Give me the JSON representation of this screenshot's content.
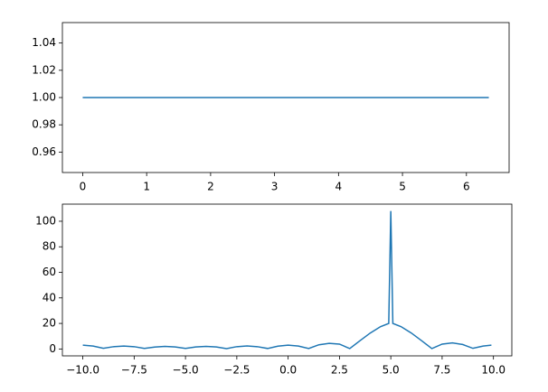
{
  "chart_data": [
    {
      "type": "line",
      "xlim": [
        -0.3175,
        6.6675
      ],
      "ylim": [
        0.945,
        1.055
      ],
      "xticks": [
        0,
        1,
        2,
        3,
        4,
        5,
        6
      ],
      "yticks": [
        {
          "value": 0.96,
          "label": "0.96"
        },
        {
          "value": 0.98,
          "label": "0.98"
        },
        {
          "value": 1.0,
          "label": "1.00"
        },
        {
          "value": 1.02,
          "label": "1.02"
        },
        {
          "value": 1.04,
          "label": "1.04"
        }
      ],
      "x": [
        0,
        6.35
      ],
      "series": [
        {
          "color": "#1f77b4",
          "values": [
            1,
            1
          ]
        }
      ]
    },
    {
      "type": "line",
      "xlim": [
        -10.995,
        10.895
      ],
      "ylim": [
        -5.4,
        113.4
      ],
      "xticks": [
        {
          "value": -10,
          "label": "−10.0"
        },
        {
          "value": -7.5,
          "label": "−7.5"
        },
        {
          "value": -5,
          "label": "−5.0"
        },
        {
          "value": -2.5,
          "label": "−2.5"
        },
        {
          "value": 0,
          "label": "0.0"
        },
        2.5,
        {
          "value": 5,
          "label": "5.0"
        },
        7.5,
        {
          "value": 10,
          "label": "10.0"
        }
      ],
      "yticks": [
        0,
        20,
        40,
        60,
        80,
        100
      ],
      "x": [
        -10,
        -9.5,
        -9,
        -8.5,
        -8,
        -7.5,
        -7,
        -6.5,
        -6,
        -5.5,
        -5,
        -4.5,
        -4,
        -3.5,
        -3,
        -2.5,
        -2,
        -1.5,
        -1,
        -0.5,
        0,
        0.5,
        1,
        1.5,
        2,
        2.5,
        3,
        3.5,
        4,
        4.5,
        4.9,
        5,
        5.1,
        5.5,
        6,
        6.5,
        7,
        7.5,
        8,
        8.5,
        9,
        9.5,
        9.9
      ],
      "series": [
        {
          "color": "#1f77b4",
          "values": [
            3,
            2.3,
            0.5,
            1.8,
            2.3,
            1.8,
            0.4,
            1.5,
            2,
            1.6,
            0.4,
            1.6,
            2,
            1.6,
            0.3,
            1.8,
            2.4,
            1.8,
            0.4,
            2.2,
            3,
            2.3,
            0.4,
            3.3,
            4.4,
            3.8,
            0.3,
            6.5,
            12.5,
            17.5,
            20,
            108,
            20,
            17.5,
            12.5,
            6.5,
            0.3,
            3.8,
            4.8,
            3.5,
            0.5,
            2.3,
            3
          ]
        }
      ]
    }
  ]
}
